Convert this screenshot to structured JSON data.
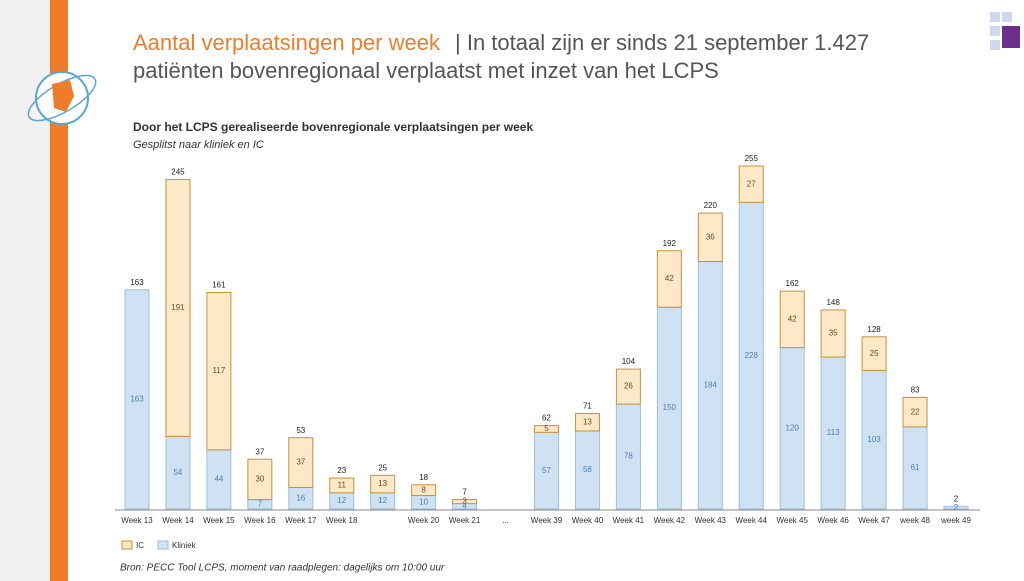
{
  "slide": {
    "title": "Aantal verplaatsingen per week",
    "line1": "| In totaal zijn er sinds 21 september 1.427",
    "line2": "patiënten bovenregionaal verplaatst met inzet van het LCPS",
    "source": "Bron: PECC Tool LCPS, moment van raadplegen: dagelijks om 10:00 uur"
  },
  "chart_data": {
    "type": "stacked-bar",
    "title": "Door het LCPS gerealiseerde bovenregionale verplaatsingen per week",
    "subtitle": "Gesplitst naar kliniek en IC",
    "categories": [
      "Week 13",
      "Week 14",
      "Week 15",
      "Week 16",
      "Week 17",
      "Week 18",
      null,
      "Week 20",
      "Week 21",
      "...",
      "Week 39",
      "Week 40",
      "Week 41",
      "Week 42",
      "Week 43",
      "Week 44",
      "Week 45",
      "Week 46",
      "Week 47",
      "week 48",
      "week 49"
    ],
    "series": [
      {
        "name": "Kliniek",
        "color": "#cfe2f3",
        "values": [
          163,
          54,
          44,
          7,
          16,
          12,
          12,
          10,
          4,
          null,
          57,
          58,
          78,
          150,
          184,
          228,
          120,
          113,
          103,
          61,
          2
        ]
      },
      {
        "name": "IC",
        "color": "#fde8c8",
        "values": [
          null,
          191,
          117,
          30,
          37,
          11,
          13,
          8,
          3,
          null,
          5,
          13,
          26,
          42,
          36,
          27,
          42,
          35,
          25,
          22,
          null
        ]
      }
    ],
    "totals": [
      163,
      245,
      161,
      37,
      53,
      23,
      25,
      18,
      7,
      null,
      62,
      71,
      104,
      192,
      220,
      255,
      162,
      148,
      128,
      83,
      2
    ]
  }
}
